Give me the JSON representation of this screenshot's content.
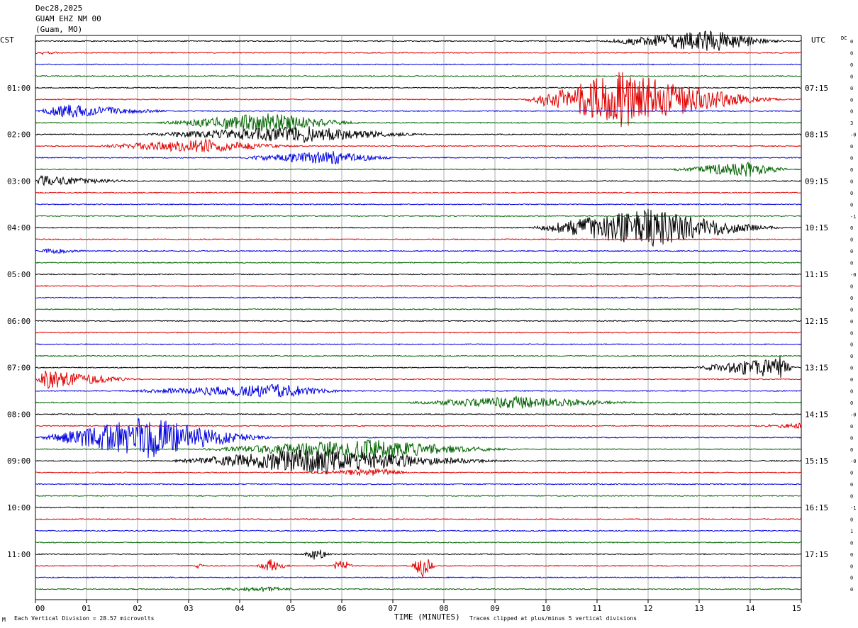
{
  "header": {
    "date": "Dec28,2025",
    "station": "GUAM EHZ NM 00",
    "location": "(Guam, MO)"
  },
  "left_tz": "CST",
  "right_tz": "UTC",
  "dc_label": "DC",
  "footer": {
    "scale": "Each Vertical Division =   28.57 microvolts",
    "clip": "Traces clipped at plus/minus 5 vertical divisions",
    "corner": "M"
  },
  "colors": {
    "trace_cycle": [
      "#000000",
      "#e00000",
      "#0000e0",
      "#006400"
    ],
    "grid": "#999999"
  },
  "chart_data": {
    "type": "line",
    "title": "GUAM EHZ NM 00",
    "xlabel": "TIME (MINUTES)",
    "x_ticks": [
      "00",
      "01",
      "02",
      "03",
      "04",
      "05",
      "06",
      "07",
      "08",
      "09",
      "10",
      "11",
      "12",
      "13",
      "14",
      "15"
    ],
    "xlim": [
      0,
      15
    ],
    "trace_count": 48,
    "minutes_per_trace": 15,
    "left_hour_labels": [
      {
        "trace": 0,
        "text": ""
      },
      {
        "trace": 4,
        "text": "01:00"
      },
      {
        "trace": 8,
        "text": "02:00"
      },
      {
        "trace": 12,
        "text": "03:00"
      },
      {
        "trace": 16,
        "text": "04:00"
      },
      {
        "trace": 20,
        "text": "05:00"
      },
      {
        "trace": 24,
        "text": "06:00"
      },
      {
        "trace": 28,
        "text": "07:00"
      },
      {
        "trace": 32,
        "text": "08:00"
      },
      {
        "trace": 36,
        "text": "09:00"
      },
      {
        "trace": 40,
        "text": "10:00"
      },
      {
        "trace": 44,
        "text": "11:00"
      }
    ],
    "right_hour_labels": [
      {
        "trace": 4,
        "text": "07:15"
      },
      {
        "trace": 8,
        "text": "08:15"
      },
      {
        "trace": 12,
        "text": "09:15"
      },
      {
        "trace": 16,
        "text": "10:15"
      },
      {
        "trace": 20,
        "text": "11:15"
      },
      {
        "trace": 24,
        "text": "12:15"
      },
      {
        "trace": 28,
        "text": "13:15"
      },
      {
        "trace": 32,
        "text": "14:15"
      },
      {
        "trace": 36,
        "text": "15:15"
      },
      {
        "trace": 40,
        "text": "16:15"
      },
      {
        "trace": 44,
        "text": "17:15"
      }
    ],
    "dc_offsets": [
      "0",
      "0",
      "0",
      "0",
      "0",
      "0",
      "0",
      "3",
      "-0",
      "0",
      "0",
      "0",
      "0",
      "0",
      "0",
      "-1",
      "0",
      "0",
      "0",
      "0",
      "-0",
      "0",
      "0",
      "0",
      "0",
      "0",
      "0",
      "0",
      "0",
      "0",
      "0",
      "0",
      "-0",
      "0",
      "0",
      "0",
      "-0",
      "0",
      "0",
      "0",
      "-1",
      "0",
      "1",
      "0",
      "0",
      "0",
      "0",
      "0"
    ],
    "base_noise": 0.7,
    "events": [
      {
        "trace": 0,
        "start": 11.0,
        "peak": 13.3,
        "end": 15.0,
        "amp": 16
      },
      {
        "trace": 1,
        "start": 0.0,
        "peak": 0.0,
        "end": 1.0,
        "amp": 3
      },
      {
        "trace": 5,
        "start": 9.5,
        "peak": 11.5,
        "end": 15.0,
        "amp": 40
      },
      {
        "trace": 6,
        "start": 0.0,
        "peak": 0.6,
        "end": 3.2,
        "amp": 10
      },
      {
        "trace": 7,
        "start": 2.3,
        "peak": 4.6,
        "end": 6.8,
        "amp": 14
      },
      {
        "trace": 8,
        "start": 1.8,
        "peak": 5.3,
        "end": 8.2,
        "amp": 12
      },
      {
        "trace": 9,
        "start": 1.0,
        "peak": 3.3,
        "end": 5.6,
        "amp": 10
      },
      {
        "trace": 10,
        "start": 3.8,
        "peak": 5.8,
        "end": 7.4,
        "amp": 10
      },
      {
        "trace": 11,
        "start": 12.3,
        "peak": 14.0,
        "end": 15.0,
        "amp": 11
      },
      {
        "trace": 12,
        "start": 0.0,
        "peak": 0.1,
        "end": 2.5,
        "amp": 8
      },
      {
        "trace": 16,
        "start": 9.6,
        "peak": 12.0,
        "end": 15.0,
        "amp": 28
      },
      {
        "trace": 18,
        "start": 0.0,
        "peak": 0.3,
        "end": 1.5,
        "amp": 4
      },
      {
        "trace": 28,
        "start": 12.8,
        "peak": 14.6,
        "end": 15.0,
        "amp": 16
      },
      {
        "trace": 29,
        "start": 0.0,
        "peak": 0.2,
        "end": 2.5,
        "amp": 14
      },
      {
        "trace": 30,
        "start": 1.5,
        "peak": 4.8,
        "end": 6.5,
        "amp": 10
      },
      {
        "trace": 31,
        "start": 7.0,
        "peak": 9.5,
        "end": 12.5,
        "amp": 9
      },
      {
        "trace": 33,
        "start": 13.8,
        "peak": 15.0,
        "end": 15.0,
        "amp": 4
      },
      {
        "trace": 34,
        "start": 0.0,
        "peak": 2.2,
        "end": 5.0,
        "amp": 30
      },
      {
        "trace": 35,
        "start": 3.0,
        "peak": 6.6,
        "end": 10.0,
        "amp": 14
      },
      {
        "trace": 36,
        "start": 2.5,
        "peak": 5.5,
        "end": 10.0,
        "amp": 18
      },
      {
        "trace": 37,
        "start": 5.0,
        "peak": 6.8,
        "end": 7.5,
        "amp": 6
      },
      {
        "trace": 44,
        "start": 5.2,
        "peak": 5.5,
        "end": 5.9,
        "amp": 10
      },
      {
        "trace": 45,
        "start": 4.3,
        "peak": 4.6,
        "end": 5.1,
        "amp": 10
      },
      {
        "trace": 45,
        "start": 5.8,
        "peak": 6.0,
        "end": 6.3,
        "amp": 12
      },
      {
        "trace": 45,
        "start": 7.35,
        "peak": 7.6,
        "end": 7.9,
        "amp": 18
      },
      {
        "trace": 45,
        "start": 3.1,
        "peak": 3.2,
        "end": 3.4,
        "amp": 4
      },
      {
        "trace": 47,
        "start": 3.3,
        "peak": 4.5,
        "end": 5.5,
        "amp": 4
      }
    ]
  }
}
